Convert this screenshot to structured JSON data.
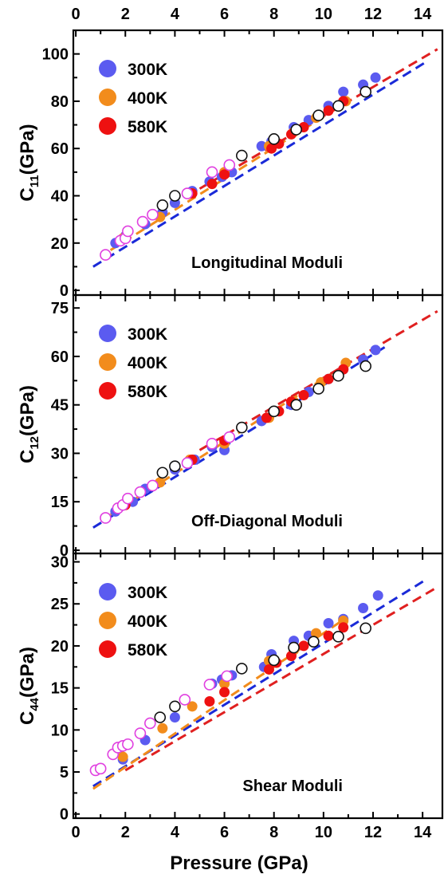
{
  "chart_data": {
    "type": "scatter",
    "xlabel": "Pressure (GPa)",
    "x_ticks": [
      0,
      2,
      4,
      6,
      8,
      10,
      12,
      14
    ],
    "xlim": [
      -0.1,
      14.8
    ],
    "panels": [
      {
        "label": "Longitudinal Moduli",
        "ylabel_main": "C",
        "ylabel_sub": "11",
        "ylabel_unit": "(GPa)",
        "ylim": [
          -2,
          110
        ],
        "y_ticks": [
          0,
          20,
          40,
          60,
          80,
          100
        ],
        "legend": [
          {
            "name": "300K",
            "color": "#5b5bf0"
          },
          {
            "name": "400K",
            "color": "#f28c1c"
          },
          {
            "name": "580K",
            "color": "#ee1111"
          }
        ],
        "series": [
          {
            "name": "300K",
            "color": "#5b5bf0",
            "style": "filled",
            "x": [
              1.6,
              2.0,
              2.8,
              3.5,
              4.0,
              4.7,
              5.4,
              5.9,
              6.3,
              7.5,
              7.9,
              8.8,
              9.4,
              10.2,
              10.8,
              11.6,
              12.1
            ],
            "y": [
              20,
              23,
              28,
              33,
              37,
              42,
              46,
              48,
              50,
              61,
              63,
              69,
              72,
              78,
              84,
              87,
              90
            ]
          },
          {
            "name": "400K",
            "color": "#f28c1c",
            "style": "filled",
            "x": [
              1.9,
              3.4,
              4.6,
              6.0,
              7.8,
              8.8,
              9.7,
              10.9
            ],
            "y": [
              22,
              31,
              41,
              50,
              61,
              67,
              73,
              80
            ]
          },
          {
            "name": "580K",
            "color": "#ee1111",
            "style": "filled",
            "x": [
              2.0,
              4.7,
              5.5,
              6.0,
              7.9,
              8.2,
              8.7,
              9.2,
              10.2,
              10.8
            ],
            "y": [
              22,
              41,
              45,
              49,
              60,
              62,
              66,
              69,
              76,
              80
            ]
          },
          {
            "name": "",
            "color": "#e040e0",
            "style": "open",
            "x": [
              1.2,
              1.8,
              2.0,
              2.1,
              2.7,
              3.1,
              4.5,
              5.5,
              6.2
            ],
            "y": [
              15,
              21,
              22,
              25,
              29,
              32,
              41,
              50,
              53
            ]
          },
          {
            "name": "",
            "color": "#111111",
            "style": "open",
            "x": [
              3.5,
              4.0,
              6.7,
              8.0,
              8.9,
              9.8,
              10.6,
              11.7
            ],
            "y": [
              36,
              40,
              57,
              64,
              68,
              74,
              78,
              84
            ]
          }
        ],
        "fits": [
          {
            "color": "#1a2ad8",
            "x": [
              0.7,
              14.2
            ],
            "y": [
              10,
              97
            ]
          },
          {
            "color": "#f28c1c",
            "x": [
              1.4,
              11.0
            ],
            "y": [
              17,
              80
            ]
          },
          {
            "color": "#e02020",
            "x": [
              5.0,
              14.6
            ],
            "y": [
              43,
              102
            ]
          }
        ]
      },
      {
        "label": "Off-Diagonal Moduli",
        "ylabel_main": "C",
        "ylabel_sub": "12",
        "ylabel_unit": "(GPa)",
        "ylim": [
          -1,
          79
        ],
        "y_ticks": [
          0,
          15,
          30,
          45,
          60,
          75
        ],
        "legend": [
          {
            "name": "300K",
            "color": "#5b5bf0"
          },
          {
            "name": "400K",
            "color": "#f28c1c"
          },
          {
            "name": "580K",
            "color": "#ee1111"
          }
        ],
        "series": [
          {
            "name": "300K",
            "color": "#5b5bf0",
            "style": "filled",
            "x": [
              1.6,
              2.3,
              2.8,
              4.0,
              4.8,
              5.5,
              6.0,
              7.5,
              8.7,
              9.4,
              10.2,
              10.8,
              11.6,
              12.1
            ],
            "y": [
              12,
              15,
              19,
              25,
              28,
              32,
              31,
              40,
              45,
              49,
              53,
              56,
              59,
              62
            ]
          },
          {
            "name": "400K",
            "color": "#f28c1c",
            "style": "filled",
            "x": [
              1.9,
              3.4,
              4.6,
              6.0,
              7.8,
              8.8,
              9.9,
              10.9
            ],
            "y": [
              14,
              21,
              28,
              33,
              41,
              46,
              52,
              58
            ]
          },
          {
            "name": "580K",
            "color": "#ee1111",
            "style": "filled",
            "x": [
              2.0,
              4.7,
              5.5,
              6.0,
              7.7,
              8.2,
              8.7,
              9.2,
              10.2,
              10.8
            ],
            "y": [
              14,
              28,
              33,
              34,
              41,
              43,
              46,
              48,
              53,
              56
            ]
          },
          {
            "name": "",
            "color": "#e040e0",
            "style": "open",
            "x": [
              1.2,
              1.7,
              1.9,
              2.1,
              2.6,
              3.1,
              4.5,
              5.5,
              6.2
            ],
            "y": [
              10,
              13,
              14,
              16,
              18,
              20,
              27,
              33,
              35
            ]
          },
          {
            "name": "",
            "color": "#111111",
            "style": "open",
            "x": [
              3.5,
              4.0,
              6.7,
              8.0,
              8.9,
              9.8,
              10.6,
              11.7
            ],
            "y": [
              24,
              26,
              38,
              43,
              45,
              50,
              54,
              57
            ]
          }
        ],
        "fits": [
          {
            "color": "#1a2ad8",
            "x": [
              0.7,
              12.5
            ],
            "y": [
              7,
              63
            ]
          },
          {
            "color": "#f28c1c",
            "x": [
              1.4,
              11.0
            ],
            "y": [
              11,
              58
            ]
          },
          {
            "color": "#e02020",
            "x": [
              5.0,
              14.6
            ],
            "y": [
              31,
              74
            ]
          }
        ]
      },
      {
        "label": "Shear Moduli",
        "ylabel_main": "C",
        "ylabel_sub": "44",
        "ylabel_unit": "(GPa)",
        "ylim": [
          -0.5,
          31
        ],
        "y_ticks": [
          0,
          5,
          10,
          15,
          20,
          25,
          30
        ],
        "legend": [
          {
            "name": "300K",
            "color": "#5b5bf0"
          },
          {
            "name": "400K",
            "color": "#f28c1c"
          },
          {
            "name": "580K",
            "color": "#ee1111"
          }
        ],
        "series": [
          {
            "name": "300K",
            "color": "#5b5bf0",
            "style": "filled",
            "x": [
              1.9,
              2.8,
              4.0,
              5.5,
              5.9,
              6.3,
              7.6,
              7.9,
              8.8,
              9.4,
              10.2,
              10.8,
              11.6,
              12.2
            ],
            "y": [
              6.5,
              8.8,
              11.5,
              15.5,
              16.0,
              16.5,
              17.5,
              19.0,
              20.6,
              21.2,
              22.7,
              23.2,
              24.5,
              26.0
            ]
          },
          {
            "name": "400K",
            "color": "#f28c1c",
            "style": "filled",
            "x": [
              1.9,
              3.5,
              4.7,
              6.0,
              7.8,
              8.8,
              9.7,
              10.8
            ],
            "y": [
              6.8,
              10.2,
              12.8,
              15.5,
              18.2,
              19.5,
              21.5,
              23.0
            ]
          },
          {
            "name": "580K",
            "color": "#ee1111",
            "style": "filled",
            "x": [
              5.4,
              6.0,
              7.8,
              8.1,
              8.7,
              9.2,
              10.2,
              10.8
            ],
            "y": [
              13.4,
              14.5,
              17.2,
              18.0,
              18.8,
              20.0,
              21.2,
              22.2
            ]
          },
          {
            "name": "",
            "color": "#e040e0",
            "style": "open",
            "x": [
              0.8,
              1.0,
              1.5,
              1.7,
              1.9,
              2.1,
              2.6,
              3.0,
              4.4,
              5.4,
              6.1
            ],
            "y": [
              5.2,
              5.4,
              7.1,
              7.9,
              8.1,
              8.3,
              9.6,
              10.8,
              13.6,
              15.4,
              16.4
            ]
          },
          {
            "name": "",
            "color": "#111111",
            "style": "open",
            "x": [
              3.4,
              4.0,
              6.7,
              8.0,
              8.8,
              9.6,
              10.6,
              11.7
            ],
            "y": [
              11.5,
              12.8,
              17.3,
              18.3,
              19.8,
              20.5,
              21.1,
              22.1
            ]
          }
        ],
        "fits": [
          {
            "color": "#1a2ad8",
            "x": [
              0.7,
              14.2
            ],
            "y": [
              3.3,
              28.0
            ]
          },
          {
            "color": "#f28c1c",
            "x": [
              0.7,
              10.8
            ],
            "y": [
              3.0,
              23.1
            ]
          },
          {
            "color": "#e02020",
            "x": [
              2.0,
              14.6
            ],
            "y": [
              5.2,
              27.0
            ]
          }
        ]
      }
    ]
  }
}
